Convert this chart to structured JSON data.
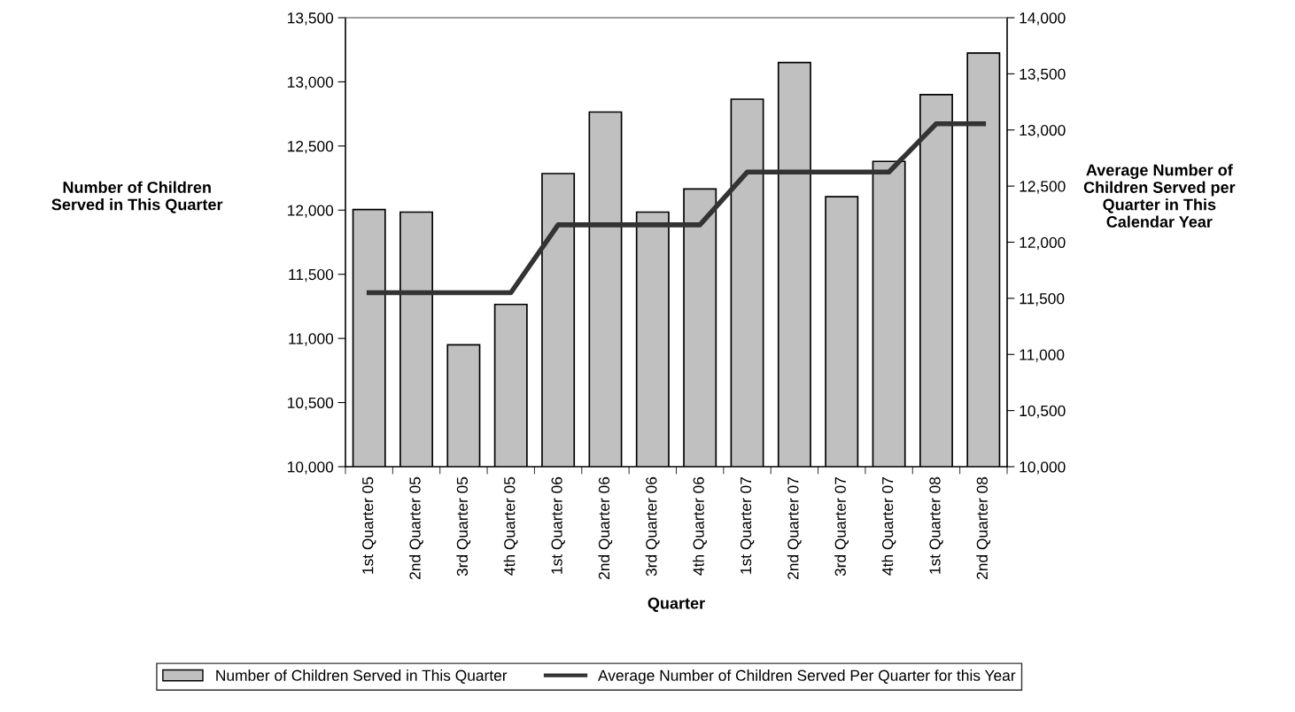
{
  "chart_data": {
    "type": "bar",
    "xlabel": "Quarter",
    "ylabel": "Number of Children\nServed in This Quarter",
    "y2label": "Average Number of\nChildren Served per\nQuarter in This\nCalendar Year",
    "categories": [
      "1st Quarter 05",
      "2nd Quarter 05",
      "3rd Quarter 05",
      "4th Quarter 05",
      "1st Quarter 06",
      "2nd Quarter 06",
      "3rd Quarter 06",
      "4th Quarter 06",
      "1st Quarter 07",
      "2nd Quarter 07",
      "3rd Quarter 07",
      "4th Quarter 07",
      "1st Quarter 08",
      "2nd Quarter 08"
    ],
    "series": [
      {
        "name": "Number of Children Served in This Quarter",
        "color": "#c0c0c0",
        "values": [
          12005,
          11985,
          10950,
          11265,
          12285,
          12765,
          11985,
          12165,
          12865,
          13150,
          12105,
          12380,
          12900,
          13225
        ]
      },
      {
        "name": "Average Number of Children Served Per Quarter for this Year",
        "type": "line",
        "axis": "y2",
        "color": "#333333",
        "values": [
          11550,
          11550,
          11550,
          11550,
          12155,
          12155,
          12155,
          12155,
          12625,
          12625,
          12625,
          12625,
          13055,
          13055
        ]
      }
    ],
    "ylim": [
      10000,
      13500
    ],
    "yticks": [
      {
        "value": 10000,
        "label": "10,000"
      },
      {
        "value": 10500,
        "label": "10,500"
      },
      {
        "value": 11000,
        "label": "11,000"
      },
      {
        "value": 11500,
        "label": "11,500"
      },
      {
        "value": 12000,
        "label": "12,000"
      },
      {
        "value": 12500,
        "label": "12,500"
      },
      {
        "value": 13000,
        "label": "13,000"
      },
      {
        "value": 13500,
        "label": "13,500"
      }
    ],
    "y2lim": [
      10000,
      14000
    ],
    "y2ticks": [
      {
        "value": 10000,
        "label": "10,000"
      },
      {
        "value": 10500,
        "label": "10,500"
      },
      {
        "value": 11000,
        "label": "11,000"
      },
      {
        "value": 11500,
        "label": "11,500"
      },
      {
        "value": 12000,
        "label": "12,000"
      },
      {
        "value": 12500,
        "label": "12,500"
      },
      {
        "value": 13000,
        "label": "13,000"
      },
      {
        "value": 13500,
        "label": "13,500"
      },
      {
        "value": 14000,
        "label": "14,000"
      }
    ],
    "grid": false,
    "legend": "bottom",
    "marker": "none",
    "line_style": "solid"
  }
}
